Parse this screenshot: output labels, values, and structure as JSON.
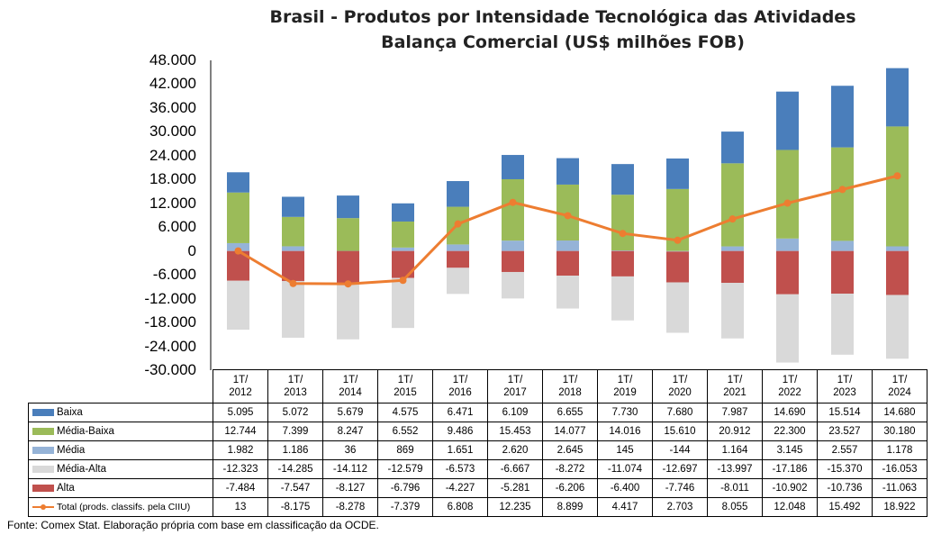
{
  "title_line1": "Brasil - Produtos por Intensidade Tecnológica das Atividades",
  "title_line2": "Balança Comercial (US$ milhões FOB)",
  "source": "Fonte:  Comex Stat. Elaboração própria com base em classificação da OCDE.",
  "colors": {
    "baixa": "#4A7EBB",
    "media_baixa": "#9BBB59",
    "media": "#95B3D7",
    "media_alta": "#D9D9D9",
    "alta": "#C0504D",
    "total": "#ED7D31"
  },
  "chart_data": {
    "type": "bar",
    "stacked": true,
    "title": "Brasil - Produtos por Intensidade Tecnológica das Atividades Balança Comercial (US$ milhões FOB)",
    "categories": [
      [
        "1T/",
        "2012"
      ],
      [
        "1T/",
        "2013"
      ],
      [
        "1T/",
        "2014"
      ],
      [
        "1T/",
        "2015"
      ],
      [
        "1T/",
        "2016"
      ],
      [
        "1T/",
        "2017"
      ],
      [
        "1T/",
        "2018"
      ],
      [
        "1T/",
        "2019"
      ],
      [
        "1T/",
        "2020"
      ],
      [
        "1T/",
        "2021"
      ],
      [
        "1T/",
        "2022"
      ],
      [
        "1T/",
        "2023"
      ],
      [
        "1T/",
        "2024"
      ]
    ],
    "ylim": [
      -30000,
      48000
    ],
    "yticks": [
      "48.000",
      "42.000",
      "36.000",
      "30.000",
      "24.000",
      "18.000",
      "12.000",
      "6.000",
      "0",
      "-6.000",
      "-12.000",
      "-18.000",
      "-24.000",
      "-30.000"
    ],
    "ytick_values": [
      48000,
      42000,
      36000,
      30000,
      24000,
      18000,
      12000,
      6000,
      0,
      -6000,
      -12000,
      -18000,
      -24000,
      -30000
    ],
    "series": [
      {
        "name": "Baixa",
        "key": "baixa",
        "values": [
          5095,
          5072,
          5679,
          4575,
          6471,
          6109,
          6655,
          7730,
          7680,
          7987,
          14690,
          15514,
          14680
        ],
        "labels": [
          "5.095",
          "5.072",
          "5.679",
          "4.575",
          "6.471",
          "6.109",
          "6.655",
          "7.730",
          "7.680",
          "7.987",
          "14.690",
          "15.514",
          "14.680"
        ]
      },
      {
        "name": "Média-Baixa",
        "key": "media_baixa",
        "values": [
          12744,
          7399,
          8247,
          6552,
          9486,
          15453,
          14077,
          14016,
          15610,
          20912,
          22300,
          23527,
          30180
        ],
        "labels": [
          "12.744",
          "7.399",
          "8.247",
          "6.552",
          "9.486",
          "15.453",
          "14.077",
          "14.016",
          "15.610",
          "20.912",
          "22.300",
          "23.527",
          "30.180"
        ]
      },
      {
        "name": "Média",
        "key": "media",
        "values": [
          1982,
          1186,
          36,
          869,
          1651,
          2620,
          2645,
          145,
          -144,
          1164,
          3145,
          2557,
          1178
        ],
        "labels": [
          "1.982",
          "1.186",
          "36",
          "869",
          "1.651",
          "2.620",
          "2.645",
          "145",
          "-144",
          "1.164",
          "3.145",
          "2.557",
          "1.178"
        ]
      },
      {
        "name": "Média-Alta",
        "key": "media_alta",
        "values": [
          -12323,
          -14285,
          -14112,
          -12579,
          -6573,
          -6667,
          -8272,
          -11074,
          -12697,
          -13997,
          -17186,
          -15370,
          -16053
        ],
        "labels": [
          "-12.323",
          "-14.285",
          "-14.112",
          "-12.579",
          "-6.573",
          "-6.667",
          "-8.272",
          "-11.074",
          "-12.697",
          "-13.997",
          "-17.186",
          "-15.370",
          "-16.053"
        ]
      },
      {
        "name": "Alta",
        "key": "alta",
        "values": [
          -7484,
          -7547,
          -8127,
          -6796,
          -4227,
          -5281,
          -6206,
          -6400,
          -7746,
          -8011,
          -10902,
          -10736,
          -11063
        ],
        "labels": [
          "-7.484",
          "-7.547",
          "-8.127",
          "-6.796",
          "-4.227",
          "-5.281",
          "-6.206",
          "-6.400",
          "-7.746",
          "-8.011",
          "-10.902",
          "-10.736",
          "-11.063"
        ]
      },
      {
        "name": "Total (prods. classifs. pela CIIU)",
        "key": "total",
        "type": "line",
        "values": [
          13,
          -8175,
          -8278,
          -7379,
          6808,
          12235,
          8899,
          4417,
          2703,
          8055,
          12048,
          15492,
          18922
        ],
        "labels": [
          "13",
          "-8.175",
          "-8.278",
          "-7.379",
          "6.808",
          "12.235",
          "8.899",
          "4.417",
          "2.703",
          "8.055",
          "12.048",
          "15.492",
          "18.922"
        ]
      }
    ]
  }
}
